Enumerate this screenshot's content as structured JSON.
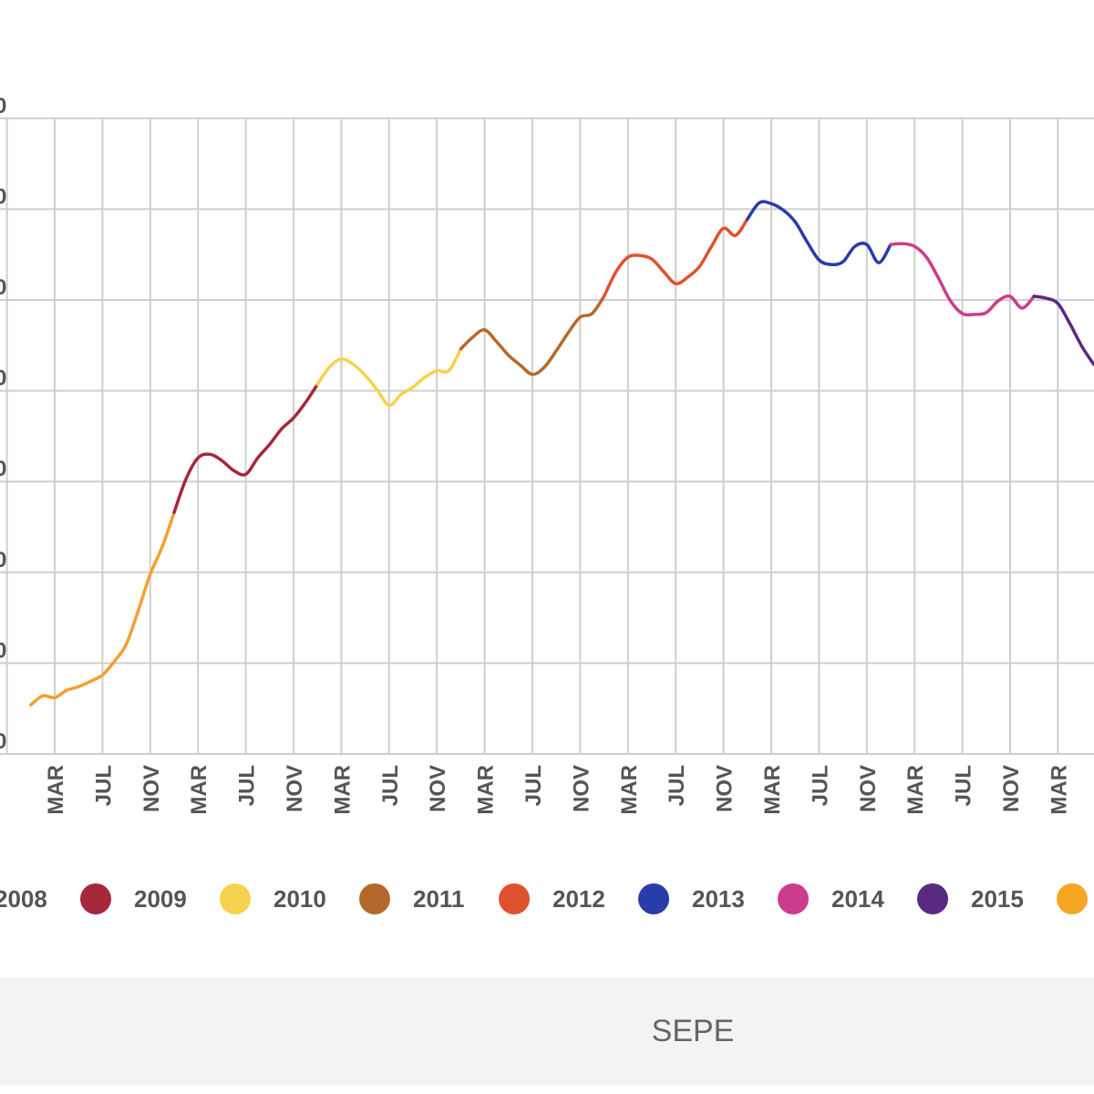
{
  "chart_data": {
    "type": "line",
    "title": "",
    "xlabel": "",
    "ylabel": "",
    "y_tick_labels_visible": [
      "0",
      "0",
      "0",
      "0",
      "0",
      "0",
      "0",
      "0"
    ],
    "ylim_gridlines": [
      0,
      7
    ],
    "grid": true,
    "x_ticks": [
      "MAR",
      "JUL",
      "NOV",
      "MAR",
      "JUL",
      "NOV",
      "MAR",
      "JUL",
      "NOV",
      "MAR",
      "JUL",
      "NOV",
      "MAR",
      "JUL",
      "NOV",
      "MAR",
      "JUL",
      "NOV",
      "MAR",
      "JUL",
      "NOV",
      "MAR"
    ],
    "x_start": "2008-01",
    "x_interval": "monthly",
    "legend_placement": "bottom",
    "series": [
      {
        "name": "2008",
        "color": "#f5a030",
        "values": [
          0.54,
          0.64,
          0.62,
          0.7,
          0.74,
          0.8,
          0.87,
          1.02,
          1.21,
          1.58,
          1.98,
          2.28
        ]
      },
      {
        "name": "2009",
        "color": "#a5283c",
        "values": [
          2.66,
          3.03,
          3.26,
          3.3,
          3.23,
          3.12,
          3.08,
          3.26,
          3.41,
          3.58,
          3.7,
          3.87
        ]
      },
      {
        "name": "2010",
        "color": "#f7d24e",
        "values": [
          4.07,
          4.26,
          4.35,
          4.29,
          4.17,
          4.01,
          3.84,
          3.96,
          4.04,
          4.15,
          4.22,
          4.22
        ]
      },
      {
        "name": "2011",
        "color": "#b4692c",
        "values": [
          4.46,
          4.59,
          4.67,
          4.54,
          4.39,
          4.28,
          4.18,
          4.26,
          4.44,
          4.64,
          4.81,
          4.85
        ]
      },
      {
        "name": "2012",
        "color": "#e0522e",
        "values": [
          5.04,
          5.31,
          5.47,
          5.49,
          5.45,
          5.31,
          5.18,
          5.25,
          5.37,
          5.59,
          5.79,
          5.71
        ]
      },
      {
        "name": "2013",
        "color": "#2a3ca8",
        "values": [
          5.89,
          6.07,
          6.06,
          5.99,
          5.86,
          5.64,
          5.44,
          5.39,
          5.42,
          5.59,
          5.61,
          5.41
        ]
      },
      {
        "name": "2014",
        "color": "#cc3c8c",
        "values": [
          5.61,
          5.62,
          5.59,
          5.47,
          5.24,
          4.99,
          4.85,
          4.84,
          4.86,
          4.99,
          5.04,
          4.91
        ]
      },
      {
        "name": "2015",
        "color": "#5a2a82",
        "values": [
          5.04,
          5.02,
          4.96,
          4.74,
          4.49,
          4.29
        ]
      }
    ],
    "legend": [
      {
        "label": "2008",
        "color": "#f5a030"
      },
      {
        "label": "2009",
        "color": "#a5283c"
      },
      {
        "label": "2010",
        "color": "#f7d24e"
      },
      {
        "label": "2011",
        "color": "#b4692c"
      },
      {
        "label": "2012",
        "color": "#e0522e"
      },
      {
        "label": "2013",
        "color": "#2a3ca8"
      },
      {
        "label": "2014",
        "color": "#cc3c8c"
      },
      {
        "label": "2015",
        "color": "#5a2a82"
      },
      {
        "label": "",
        "color": "#f5a623"
      }
    ]
  },
  "footer": {
    "source": "SEPE"
  }
}
